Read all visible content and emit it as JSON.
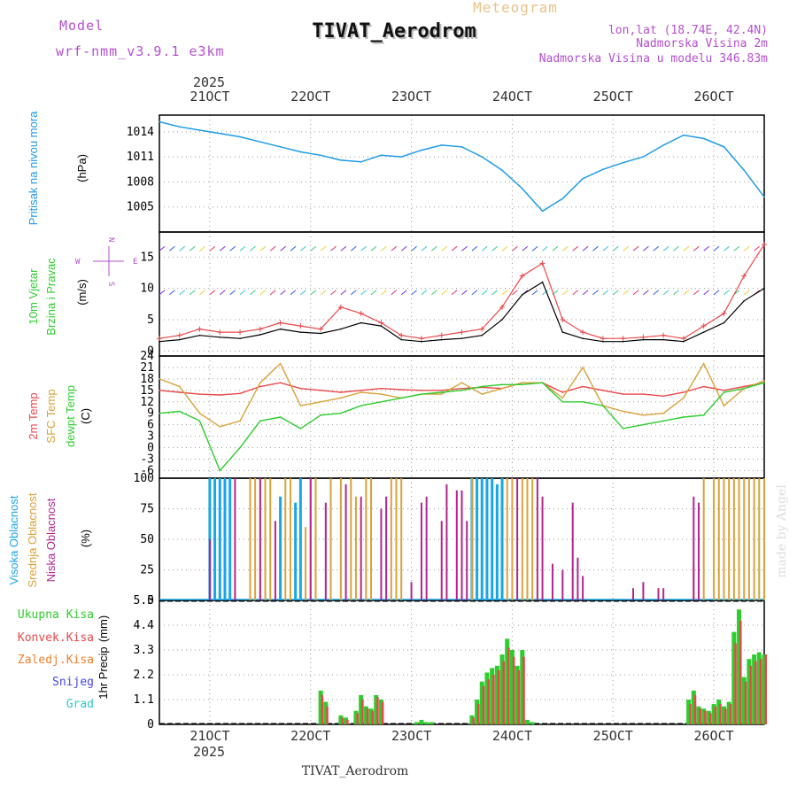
{
  "header": {
    "model_label": "Model",
    "model_name": "wrf-nmm_v3.9.1 e3km",
    "chart_type": "Meteogram",
    "station": "TIVAT_Aerodrom",
    "lonlat": "lon,lat (18.74E, 42.4N)",
    "elevation": "Nadmorska Visina 2m",
    "model_elevation": "Nadmorska Visina u modelu 346.83m",
    "credit": "made by Angel",
    "footer_station": "TIVAT_Aerodrom"
  },
  "colors": {
    "pressure": "#1e9be6",
    "temp2m": "#e8474a",
    "sfc": "#d9a23a",
    "dew": "#2ecc2e",
    "high_cloud": "#19a6e6",
    "mid_cloud": "#d9a23a",
    "low_cloud": "#b0268e",
    "precip_total": "#2ecc2e",
    "precip_conv": "#e8474a",
    "title_purple": "#b44fcf"
  },
  "chart_data": [
    {
      "type": "line",
      "panel": "pressure",
      "ylabel": "Pritisak na nivou mora",
      "unit": "(hPa)",
      "yticks": [
        1005,
        1008,
        1011,
        1014
      ],
      "ylim": [
        1002,
        1016
      ],
      "x": [
        20.5,
        20.7,
        20.9,
        21.1,
        21.3,
        21.5,
        21.7,
        21.9,
        22.1,
        22.3,
        22.5,
        22.7,
        22.9,
        23.1,
        23.3,
        23.5,
        23.7,
        23.9,
        24.1,
        24.3,
        24.5,
        24.7,
        24.9,
        25.1,
        25.3,
        25.5,
        25.7,
        25.9,
        26.1,
        26.3,
        26.5
      ],
      "values": [
        1015.2,
        1014.6,
        1014.2,
        1013.8,
        1013.4,
        1012.8,
        1012.2,
        1011.6,
        1011.2,
        1010.6,
        1010.4,
        1011.2,
        1011.0,
        1011.8,
        1012.4,
        1012.2,
        1011.0,
        1009.4,
        1007.2,
        1004.5,
        1006.0,
        1008.4,
        1009.5,
        1010.3,
        1011.0,
        1012.4,
        1013.6,
        1013.2,
        1012.2,
        1009.4,
        1006.2
      ]
    },
    {
      "type": "line",
      "panel": "wind",
      "ylabel": [
        "10m Vjetar",
        "Brzina i Pravac"
      ],
      "unit": "(m/s)",
      "yticks": [
        0,
        5,
        10,
        15
      ],
      "ylim": [
        -0.8,
        19
      ],
      "compass": {
        "n": "N",
        "s": "S",
        "w": "W",
        "e": "E"
      },
      "x": [
        20.5,
        20.7,
        20.9,
        21.1,
        21.3,
        21.5,
        21.7,
        21.9,
        22.1,
        22.3,
        22.5,
        22.7,
        22.9,
        23.1,
        23.3,
        23.5,
        23.7,
        23.9,
        24.1,
        24.3,
        24.5,
        24.7,
        24.9,
        25.1,
        25.3,
        25.5,
        25.7,
        25.9,
        26.1,
        26.3,
        26.5
      ],
      "series": [
        {
          "name": "speed",
          "values": [
            1.5,
            1.8,
            2.5,
            2.2,
            2.0,
            2.6,
            3.5,
            3.0,
            2.8,
            3.5,
            4.5,
            4.0,
            1.8,
            1.5,
            1.8,
            2.0,
            2.5,
            5.0,
            9.0,
            11.0,
            3.0,
            2.0,
            1.5,
            1.5,
            1.8,
            1.8,
            1.5,
            3.0,
            4.5,
            8.0,
            10.0
          ]
        },
        {
          "name": "gust",
          "values": [
            2.0,
            2.5,
            3.5,
            3.0,
            3.0,
            3.5,
            4.5,
            4.0,
            3.5,
            7.0,
            6.0,
            4.5,
            2.5,
            2.0,
            2.5,
            3.0,
            3.5,
            7.0,
            12.0,
            14.0,
            5.0,
            3.0,
            2.0,
            2.0,
            2.2,
            2.5,
            2.0,
            4.0,
            6.0,
            12.0,
            17.0
          ]
        }
      ]
    },
    {
      "type": "line",
      "panel": "temperature",
      "ylabel": [
        "2m Temp",
        "SFC Temp",
        "dewpt Temp"
      ],
      "unit": "(C)",
      "yticks": [
        -6,
        -3,
        0,
        3,
        6,
        9,
        12,
        15,
        18,
        21,
        24
      ],
      "ylim": [
        -8,
        24
      ],
      "x": [
        20.5,
        20.7,
        20.9,
        21.1,
        21.3,
        21.5,
        21.7,
        21.9,
        22.1,
        22.3,
        22.5,
        22.7,
        22.9,
        23.1,
        23.3,
        23.5,
        23.7,
        23.9,
        24.1,
        24.3,
        24.5,
        24.7,
        24.9,
        25.1,
        25.3,
        25.5,
        25.7,
        25.9,
        26.1,
        26.3,
        26.5
      ],
      "series": [
        {
          "name": "2m Temp",
          "values": [
            15.0,
            14.5,
            14.0,
            13.8,
            14.2,
            16.0,
            17.0,
            15.5,
            15.0,
            14.5,
            15.0,
            15.5,
            15.2,
            15.0,
            15.0,
            15.5,
            15.8,
            15.5,
            17.0,
            17.0,
            14.5,
            16.0,
            15.0,
            14.0,
            14.0,
            13.5,
            14.5,
            16.0,
            15.0,
            16.0,
            17.0
          ]
        },
        {
          "name": "SFC Temp",
          "values": [
            18.0,
            16.0,
            9.0,
            5.5,
            7.0,
            17.0,
            22.0,
            11.0,
            12.0,
            13.0,
            14.5,
            14.0,
            13.0,
            14.0,
            14.0,
            17.0,
            14.0,
            15.5,
            17.0,
            17.0,
            13.0,
            21.0,
            11.0,
            9.5,
            8.5,
            9.0,
            13.0,
            22.0,
            11.0,
            15.5,
            17.5
          ]
        },
        {
          "name": "dewpt Temp",
          "values": [
            9.0,
            9.5,
            7.0,
            -6.0,
            0.0,
            7.0,
            8.0,
            5.0,
            8.5,
            9.0,
            11.0,
            12.0,
            13.0,
            14.0,
            14.5,
            15.0,
            16.0,
            16.5,
            16.5,
            17.0,
            12.0,
            12.0,
            11.0,
            5.0,
            6.0,
            7.0,
            8.0,
            8.5,
            14.5,
            15.5,
            17.0
          ]
        }
      ]
    },
    {
      "type": "bar",
      "panel": "cloud",
      "ylabel": [
        "Visoka Oblacnost",
        "Srednja Oblacnost",
        "Niska Oblacnost"
      ],
      "unit": "(%)",
      "yticks": [
        0,
        25,
        50,
        75,
        100
      ],
      "ylim": [
        0,
        100
      ],
      "series": [
        {
          "name": "Visoka Oblacnost",
          "x": [
            21.0,
            21.05,
            21.1,
            21.15,
            21.2,
            21.7,
            21.85,
            21.9,
            23.6,
            23.65,
            23.7,
            23.75,
            23.8,
            23.85,
            23.9
          ],
          "values": [
            100,
            100,
            100,
            100,
            100,
            85,
            80,
            100,
            100,
            100,
            100,
            100,
            100,
            95,
            100
          ]
        },
        {
          "name": "Srednja Oblacnost",
          "x": [
            21.4,
            21.45,
            21.5,
            21.55,
            21.6,
            21.75,
            21.8,
            21.95,
            22.0,
            22.05,
            22.2,
            22.3,
            22.4,
            22.45,
            22.55,
            22.6,
            22.8,
            22.85,
            22.9,
            23.6,
            23.95,
            24.0,
            24.1,
            24.15,
            24.2,
            25.8,
            25.9,
            26.0,
            26.05,
            26.1,
            26.15,
            26.2,
            26.25,
            26.3,
            26.35,
            26.4,
            26.45,
            26.5
          ],
          "values": [
            100,
            100,
            100,
            100,
            100,
            100,
            100,
            60,
            100,
            100,
            100,
            100,
            100,
            85,
            100,
            100,
            100,
            100,
            100,
            100,
            100,
            100,
            100,
            100,
            100,
            30,
            100,
            100,
            100,
            100,
            100,
            100,
            100,
            100,
            100,
            100,
            100,
            100
          ]
        },
        {
          "name": "Niska Oblacnost",
          "x": [
            21.0,
            21.25,
            21.5,
            21.65,
            22.0,
            22.15,
            22.35,
            22.5,
            22.7,
            22.75,
            23.0,
            23.1,
            23.15,
            23.3,
            23.35,
            23.45,
            23.5,
            23.55,
            24.05,
            24.25,
            24.3,
            24.4,
            24.5,
            24.6,
            24.65,
            24.7,
            25.2,
            25.3,
            25.45,
            25.5,
            25.8,
            25.85
          ],
          "values": [
            50,
            100,
            100,
            65,
            100,
            80,
            95,
            85,
            75,
            85,
            15,
            80,
            85,
            65,
            95,
            90,
            90,
            65,
            100,
            100,
            85,
            30,
            25,
            80,
            35,
            20,
            10,
            15,
            10,
            10,
            85,
            80
          ]
        }
      ]
    },
    {
      "type": "bar",
      "panel": "precip",
      "ylabel": "1hr Precip",
      "unit": "(mm)",
      "yticks": [
        0,
        1.1,
        2.2,
        3.3,
        4.4,
        5.5
      ],
      "ylim": [
        0,
        5.5
      ],
      "legend": [
        "Ukupna Kisa",
        "Konvek.Kisa",
        "Zaledj.Kisa",
        "Snijeg",
        "Grad"
      ],
      "series": [
        {
          "name": "Ukupna Kisa",
          "x": [
            22.1,
            22.15,
            22.3,
            22.35,
            22.45,
            22.5,
            22.55,
            22.6,
            22.65,
            22.7,
            23.05,
            23.1,
            23.15,
            23.2,
            23.6,
            23.65,
            23.7,
            23.75,
            23.8,
            23.85,
            23.9,
            23.95,
            24.0,
            24.05,
            24.1,
            24.15,
            24.2,
            25.75,
            25.8,
            25.85,
            25.9,
            25.95,
            26.0,
            26.05,
            26.1,
            26.15,
            26.2,
            26.25,
            26.3,
            26.35,
            26.4,
            26.45,
            26.5
          ],
          "values": [
            1.5,
            1.0,
            0.4,
            0.3,
            0.6,
            1.3,
            0.8,
            0.7,
            1.3,
            1.1,
            0.1,
            0.2,
            0.1,
            0.1,
            0.4,
            1.1,
            1.9,
            2.3,
            2.5,
            2.6,
            3.1,
            3.8,
            3.3,
            2.6,
            3.3,
            0.2,
            0.1,
            1.1,
            1.5,
            0.8,
            0.7,
            0.6,
            0.9,
            1.1,
            0.8,
            1.0,
            4.1,
            5.1,
            2.1,
            2.9,
            3.1,
            3.2,
            3.1
          ]
        },
        {
          "name": "Konvek.Kisa",
          "x": [
            22.1,
            22.15,
            22.3,
            22.35,
            22.45,
            22.5,
            22.55,
            22.6,
            22.65,
            22.7,
            23.6,
            23.65,
            23.7,
            23.75,
            23.8,
            23.85,
            23.9,
            23.95,
            24.0,
            24.05,
            24.1,
            25.75,
            25.8,
            25.85,
            25.9,
            25.95,
            26.0,
            26.05,
            26.1,
            26.15,
            26.2,
            26.25,
            26.3,
            26.35,
            26.4,
            26.45,
            26.5
          ],
          "values": [
            1.3,
            0.8,
            0.3,
            0.2,
            0.5,
            1.1,
            0.7,
            0.6,
            1.2,
            1.0,
            0.3,
            0.9,
            1.7,
            2.0,
            2.2,
            2.4,
            2.8,
            3.4,
            3.0,
            2.4,
            3.0,
            0.9,
            1.3,
            0.7,
            0.6,
            0.5,
            0.8,
            0.9,
            0.7,
            0.9,
            3.6,
            4.6,
            1.9,
            2.6,
            2.8,
            2.9,
            3.1
          ]
        }
      ]
    }
  ],
  "x_axis": {
    "top_year": "2025",
    "bottom_year": "2025",
    "ticks": [
      "21OCT",
      "22OCT",
      "23OCT",
      "24OCT",
      "25OCT",
      "26OCT"
    ],
    "tick_days": [
      21,
      22,
      23,
      24,
      25,
      26
    ],
    "range": [
      20.5,
      26.5
    ]
  }
}
